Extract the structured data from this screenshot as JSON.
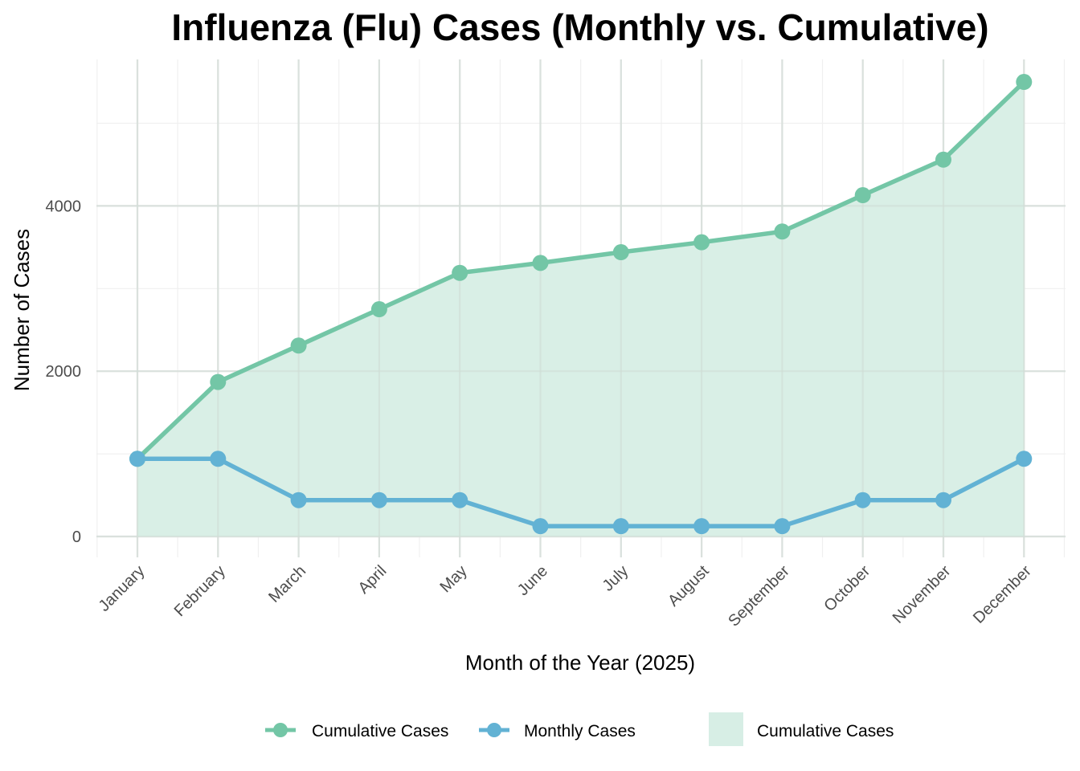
{
  "chart_data": {
    "type": "line",
    "title": "Influenza (Flu) Cases (Monthly vs. Cumulative)",
    "xlabel": "Month of the Year (2025)",
    "ylabel": "Number of Cases",
    "categories": [
      "January",
      "February",
      "March",
      "April",
      "May",
      "June",
      "July",
      "August",
      "September",
      "October",
      "November",
      "December"
    ],
    "y_ticks": [
      0,
      2000,
      4000
    ],
    "ylim": [
      -200,
      5750
    ],
    "grid": true,
    "legend_position": "bottom",
    "series": [
      {
        "name": "Cumulative Cases",
        "kind": "line+points+area",
        "color": "#73c6a6",
        "fill_color": "#d7eee5",
        "values": [
          940,
          1870,
          2310,
          2750,
          3190,
          3310,
          3440,
          3560,
          3690,
          4130,
          4560,
          5500
        ]
      },
      {
        "name": "Monthly Cases",
        "kind": "line+points",
        "color": "#62b2d4",
        "values": [
          940,
          940,
          440,
          440,
          440,
          125,
          125,
          125,
          125,
          440,
          440,
          940
        ]
      }
    ],
    "legend": [
      {
        "label": "Cumulative Cases",
        "kind": "line+point",
        "color": "#73c6a6"
      },
      {
        "label": "Monthly Cases",
        "kind": "line+point",
        "color": "#62b2d4"
      },
      {
        "label": "Cumulative Cases",
        "kind": "fill",
        "color": "#d7eee5"
      }
    ]
  }
}
